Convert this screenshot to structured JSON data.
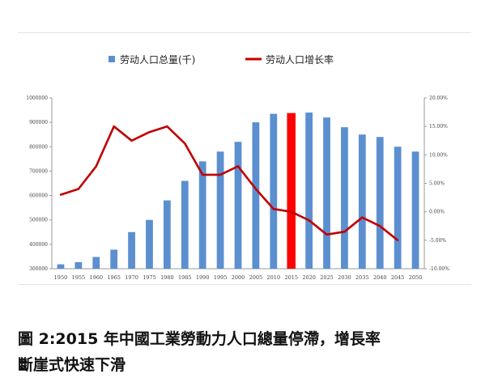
{
  "chart_data": {
    "type": "bar",
    "categories": [
      "1950",
      "1955",
      "1960",
      "1965",
      "1970",
      "1975",
      "1980",
      "1985",
      "1990",
      "1995",
      "2000",
      "2005",
      "2010",
      "2015",
      "2020",
      "2025",
      "2030",
      "2035",
      "2040",
      "2045",
      "2050"
    ],
    "series": [
      {
        "name": "劳动人口总量(千)",
        "type": "bar",
        "axis": "left",
        "color": "#5b8fd0",
        "values": [
          318000,
          327000,
          348000,
          378000,
          450000,
          500000,
          580000,
          660000,
          740000,
          780000,
          820000,
          900000,
          935000,
          938000,
          940000,
          920000,
          880000,
          850000,
          840000,
          800000,
          780000
        ]
      },
      {
        "name": "劳动人口增长率",
        "type": "line",
        "axis": "right",
        "color": "#c00000",
        "values": [
          3.0,
          4.0,
          8.0,
          15.0,
          12.5,
          14.0,
          15.0,
          12.0,
          6.5,
          6.5,
          8.0,
          4.0,
          0.5,
          0.0,
          -1.5,
          -4.0,
          -3.5,
          -1.0,
          -2.5,
          -5.0,
          null
        ]
      }
    ],
    "highlight": {
      "category": "2015",
      "color": "#ff0000"
    },
    "y_left": {
      "ylim": [
        300000,
        1000000
      ],
      "ticks": [
        "300000",
        "400000",
        "500000",
        "600000",
        "700000",
        "800000",
        "900000",
        "1000000"
      ]
    },
    "y_right": {
      "ylim": [
        -10,
        20
      ],
      "ticks": [
        "-10.00%",
        "-5.00%",
        "0.00%",
        "5.00%",
        "10.00%",
        "15.00%",
        "20.00%"
      ]
    },
    "legend_position": "top-center",
    "grid": false
  },
  "caption": {
    "line1": "圖 2:2015 年中國工業勞動力人口總量停滯，增長率",
    "line2": "斷崖式快速下滑"
  }
}
